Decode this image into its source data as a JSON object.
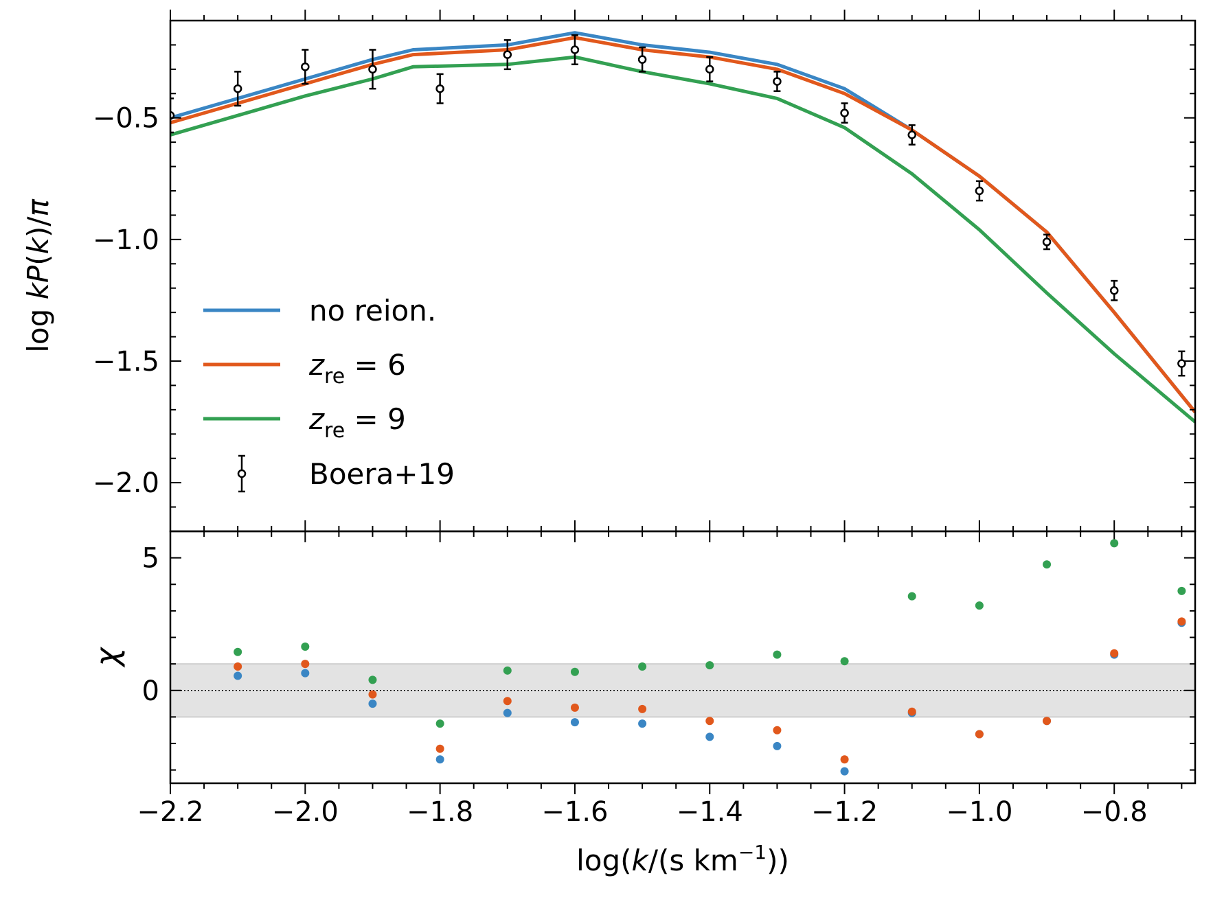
{
  "chart_data": [
    {
      "type": "line",
      "panel": "top",
      "ylabel": "log kP(k)/π",
      "ylabel_parts": {
        "pre": "log ",
        "k": "k",
        "P": "P",
        "arg": "(",
        "kk": "k",
        "close": ")/",
        "pi": "π"
      },
      "xlim": [
        -2.2,
        -0.68
      ],
      "ylim": [
        -2.2,
        -0.1
      ],
      "yticks": [
        -2.0,
        -1.5,
        -1.0,
        -0.5
      ],
      "ytick_labels": [
        "−2.0",
        "−1.5",
        "−1.0",
        "−0.5"
      ],
      "series": [
        {
          "name": "no reion.",
          "color": "#3a86c4",
          "x": [
            -2.2,
            -2.1,
            -2.0,
            -1.9,
            -1.84,
            -1.7,
            -1.6,
            -1.5,
            -1.4,
            -1.3,
            -1.2,
            -1.1,
            -1.0,
            -0.9,
            -0.8,
            -0.68
          ],
          "y": [
            -0.5,
            -0.42,
            -0.34,
            -0.26,
            -0.22,
            -0.2,
            -0.15,
            -0.2,
            -0.23,
            -0.28,
            -0.38,
            -0.55,
            -0.74,
            -0.97,
            -1.3,
            -1.71
          ]
        },
        {
          "name": "z_re = 6",
          "label_main": "z",
          "label_sub": "re",
          "label_eq": " = 6",
          "color": "#e1581c",
          "x": [
            -2.2,
            -2.1,
            -2.0,
            -1.9,
            -1.84,
            -1.7,
            -1.6,
            -1.5,
            -1.4,
            -1.3,
            -1.2,
            -1.1,
            -1.0,
            -0.9,
            -0.8,
            -0.68
          ],
          "y": [
            -0.52,
            -0.44,
            -0.36,
            -0.28,
            -0.24,
            -0.22,
            -0.17,
            -0.22,
            -0.25,
            -0.3,
            -0.4,
            -0.55,
            -0.74,
            -0.97,
            -1.3,
            -1.71
          ]
        },
        {
          "name": "z_re = 9",
          "label_main": "z",
          "label_sub": "re",
          "label_eq": " = 9",
          "color": "#33a052",
          "x": [
            -2.2,
            -2.1,
            -2.0,
            -1.9,
            -1.84,
            -1.7,
            -1.6,
            -1.5,
            -1.4,
            -1.3,
            -1.2,
            -1.1,
            -1.0,
            -0.9,
            -0.8,
            -0.68
          ],
          "y": [
            -0.57,
            -0.49,
            -0.41,
            -0.34,
            -0.29,
            -0.28,
            -0.25,
            -0.31,
            -0.36,
            -0.42,
            -0.54,
            -0.73,
            -0.96,
            -1.22,
            -1.47,
            -1.75
          ]
        }
      ],
      "data_points": {
        "name": "Boera+19",
        "x": [
          -2.2,
          -2.1,
          -2.0,
          -1.9,
          -1.8,
          -1.7,
          -1.6,
          -1.5,
          -1.4,
          -1.3,
          -1.2,
          -1.1,
          -1.0,
          -0.9,
          -0.8,
          -0.7
        ],
        "y": [
          -0.49,
          -0.38,
          -0.29,
          -0.3,
          -0.38,
          -0.24,
          -0.22,
          -0.26,
          -0.3,
          -0.35,
          -0.48,
          -0.57,
          -0.8,
          -1.01,
          -1.21,
          -1.51
        ],
        "yerr": [
          0.07,
          0.07,
          0.07,
          0.08,
          0.06,
          0.06,
          0.06,
          0.05,
          0.05,
          0.04,
          0.04,
          0.04,
          0.04,
          0.03,
          0.04,
          0.05
        ]
      },
      "legend": {
        "location": "lower-left",
        "entries": [
          "no reion.",
          "z_re = 6",
          "z_re = 9",
          "Boera+19"
        ]
      }
    },
    {
      "type": "scatter",
      "panel": "bottom",
      "ylabel": "χ",
      "xlabel": "log(k/(s km⁻¹))",
      "xlabel_parts": {
        "pre": "log(",
        "k": "k",
        "mid": "/(s km",
        "sup": "−1",
        "post": "))"
      },
      "xlim": [
        -2.2,
        -0.68
      ],
      "ylim": [
        -3.5,
        6.0
      ],
      "yticks": [
        0,
        5
      ],
      "ytick_labels": [
        "0",
        "5"
      ],
      "xticks": [
        -2.2,
        -2.0,
        -1.8,
        -1.6,
        -1.4,
        -1.2,
        -1.0,
        -0.8
      ],
      "xtick_labels": [
        "−2.2",
        "−2.0",
        "−1.8",
        "−1.6",
        "−1.4",
        "−1.2",
        "−1.0",
        "−0.8"
      ],
      "band": [
        -1,
        1
      ],
      "zero_line": 0,
      "series": [
        {
          "name": "no reion.",
          "color": "#3a86c4",
          "x": [
            -2.1,
            -2.0,
            -1.9,
            -1.8,
            -1.7,
            -1.6,
            -1.5,
            -1.4,
            -1.3,
            -1.2,
            -1.1,
            -1.0,
            -0.9,
            -0.8,
            -0.7
          ],
          "y": [
            0.55,
            0.65,
            -0.5,
            -2.6,
            -0.85,
            -1.2,
            -1.25,
            -1.75,
            -2.1,
            -3.05,
            -0.85,
            -1.65,
            -1.15,
            1.35,
            2.55
          ]
        },
        {
          "name": "z_re = 6",
          "color": "#e1581c",
          "x": [
            -2.1,
            -2.0,
            -1.9,
            -1.8,
            -1.7,
            -1.6,
            -1.5,
            -1.4,
            -1.3,
            -1.2,
            -1.1,
            -1.0,
            -0.9,
            -0.8,
            -0.7
          ],
          "y": [
            0.9,
            1.0,
            -0.15,
            -2.2,
            -0.4,
            -0.65,
            -0.7,
            -1.15,
            -1.5,
            -2.6,
            -0.8,
            -1.65,
            -1.15,
            1.4,
            2.6
          ]
        },
        {
          "name": "z_re = 9",
          "color": "#33a052",
          "x": [
            -2.1,
            -2.0,
            -1.9,
            -1.8,
            -1.7,
            -1.6,
            -1.5,
            -1.4,
            -1.3,
            -1.2,
            -1.1,
            -1.0,
            -0.9,
            -0.8,
            -0.7
          ],
          "y": [
            1.45,
            1.65,
            0.4,
            -1.25,
            0.75,
            0.7,
            0.9,
            0.95,
            1.35,
            1.1,
            3.55,
            3.2,
            4.75,
            5.55,
            3.75
          ]
        }
      ]
    }
  ]
}
